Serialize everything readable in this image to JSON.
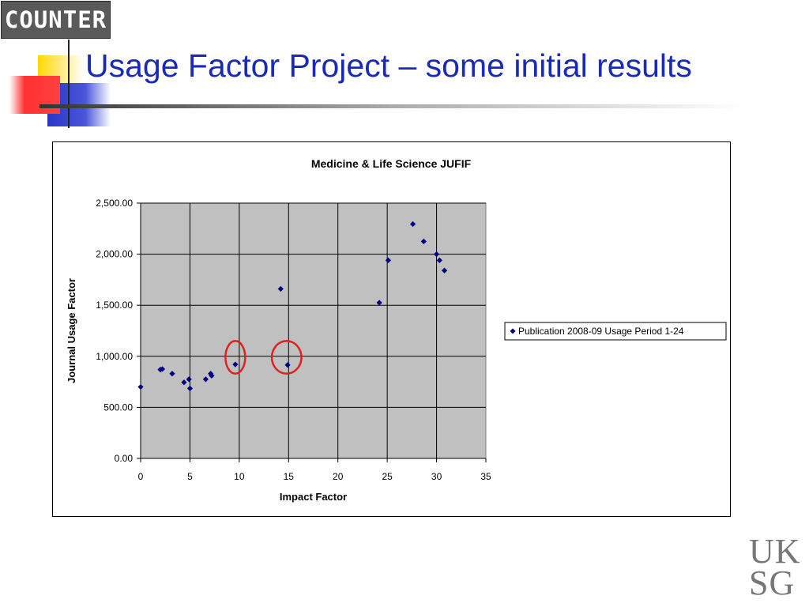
{
  "logo": {
    "text": "COUNTER"
  },
  "slide": {
    "title": "Usage Factor Project – some initial results"
  },
  "footer_logo": {
    "line1": "UK",
    "line2": "SG"
  },
  "colors": {
    "title": "#1a2ab8",
    "marker": "#000080",
    "plot_bg": "#c0c0c0",
    "highlight": "#dd2222"
  },
  "chart_data": {
    "type": "scatter",
    "title": "Medicine & Life Science JUFIF",
    "xlabel": "Impact Factor",
    "ylabel": "Journal Usage Factor",
    "xlim": [
      0,
      35
    ],
    "ylim": [
      0,
      2500
    ],
    "xticks": [
      0,
      5,
      10,
      15,
      20,
      25,
      30,
      35
    ],
    "xtick_labels": [
      "0",
      "5",
      "10",
      "15",
      "20",
      "25",
      "30",
      "35"
    ],
    "yticks": [
      0,
      500,
      1000,
      1500,
      2000,
      2500
    ],
    "ytick_labels": [
      "0.00",
      "500.00",
      "1,000.00",
      "1,500.00",
      "2,000.00",
      "2,500.00"
    ],
    "grid": true,
    "legend_position": "right",
    "series": [
      {
        "name": "Publication 2008-09 Usage Period 1-24",
        "marker": "diamond",
        "x": [
          0,
          2.0,
          2.2,
          3.2,
          4.4,
          4.9,
          5.0,
          6.6,
          7.1,
          7.2,
          9.6,
          14.2,
          14.9,
          24.2,
          25.1,
          27.6,
          28.7,
          30.0,
          30.3,
          30.8
        ],
        "y": [
          700,
          870,
          875,
          830,
          745,
          775,
          685,
          775,
          830,
          810,
          920,
          1660,
          915,
          1525,
          1940,
          2295,
          2125,
          2000,
          1940,
          1840
        ]
      }
    ],
    "annotations": [
      {
        "shape": "ellipse",
        "x": 9.6,
        "y": 990,
        "rx": 1.0,
        "ry": 160
      },
      {
        "shape": "ellipse",
        "x": 14.8,
        "y": 990,
        "rx": 1.5,
        "ry": 160
      }
    ]
  }
}
